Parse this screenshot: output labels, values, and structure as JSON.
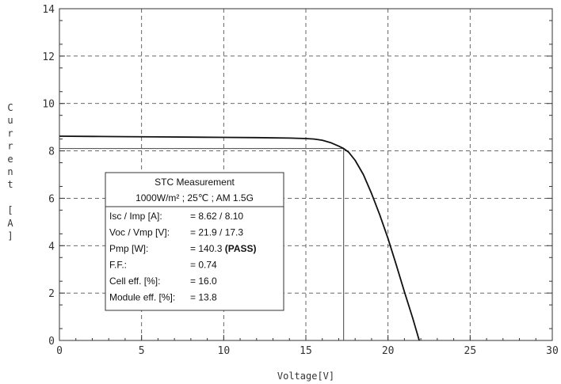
{
  "chart_data": {
    "type": "line",
    "xlabel": "Voltage[V]",
    "ylabel": "Current [A]",
    "xlim": [
      0,
      30
    ],
    "ylim": [
      0,
      14
    ],
    "x_ticks": [
      "0",
      "5",
      "10",
      "15",
      "20",
      "25",
      "30"
    ],
    "y_ticks": [
      "0",
      "2",
      "4",
      "6",
      "8",
      "10",
      "12",
      "14"
    ],
    "grid": true,
    "series": [
      {
        "x": [
          0,
          2,
          4,
          6,
          8,
          10,
          12,
          14,
          15,
          15.5,
          16,
          16.5,
          17,
          17.3,
          17.6,
          18,
          18.5,
          19,
          19.5,
          20,
          20.5,
          21,
          21.5,
          21.9
        ],
        "y": [
          8.62,
          8.61,
          8.6,
          8.59,
          8.58,
          8.57,
          8.56,
          8.54,
          8.52,
          8.5,
          8.45,
          8.35,
          8.2,
          8.1,
          7.95,
          7.6,
          7.0,
          6.2,
          5.3,
          4.3,
          3.2,
          2.05,
          0.95,
          0.0
        ]
      }
    ],
    "mpp_marker": {
      "x": 17.3,
      "y": 8.1
    }
  },
  "stc_box": {
    "title": "STC Measurement",
    "conditions": "1000W/m² ; 25℃ ; AM 1.5G",
    "rows": [
      {
        "label": "Isc / Imp [A]:",
        "value": "= 8.62 / 8.10",
        "bold": ""
      },
      {
        "label": "Voc / Vmp [V]:",
        "value": "= 21.9 / 17.3",
        "bold": ""
      },
      {
        "label": "Pmp [W]:",
        "value": "= 140.3",
        "bold": "(PASS)"
      },
      {
        "label": "F.F.:",
        "value": "= 0.74",
        "bold": ""
      },
      {
        "label": "Cell eff. [%]:",
        "value": "= 16.0",
        "bold": ""
      },
      {
        "label": "Module eff. [%]:",
        "value": "= 13.8",
        "bold": ""
      }
    ]
  }
}
